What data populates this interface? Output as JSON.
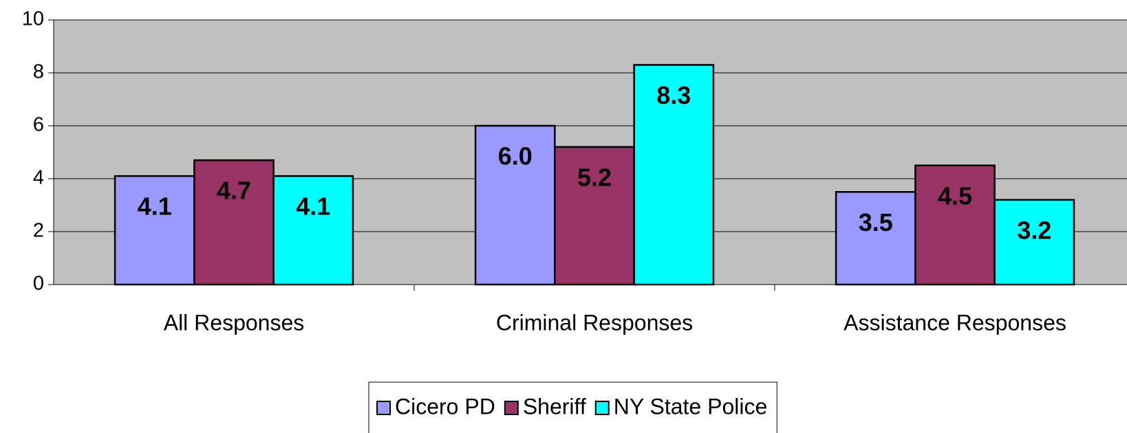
{
  "chart_data": {
    "type": "bar",
    "categories": [
      "All Responses",
      "Criminal Responses",
      "Assistance Responses"
    ],
    "series": [
      {
        "name": "Cicero PD",
        "color": "#9999ff",
        "values": [
          4.1,
          6.0,
          3.5
        ],
        "value_labels": [
          "4.1",
          "6.0",
          "3.5"
        ]
      },
      {
        "name": "Sheriff",
        "color": "#993366",
        "values": [
          4.7,
          5.2,
          4.5
        ],
        "value_labels": [
          "4.7",
          "5.2",
          "4.5"
        ]
      },
      {
        "name": "NY State Police",
        "color": "#00ffff",
        "values": [
          4.1,
          8.3,
          3.2
        ],
        "value_labels": [
          "4.1",
          "8.3",
          "3.2"
        ]
      }
    ],
    "ylim": [
      0,
      10
    ],
    "yticks": [
      0,
      2,
      4,
      6,
      8,
      10
    ],
    "grid": true,
    "legend": "bottom"
  }
}
